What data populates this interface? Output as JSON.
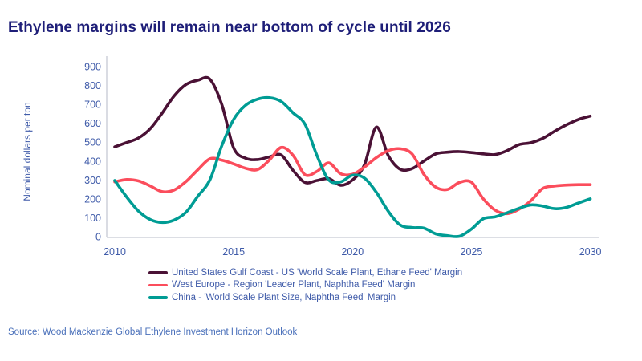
{
  "title": "Ethylene margins will remain near bottom of cycle until 2026",
  "source": "Source: Wood Mackenzie Global Ethylene Investment Horizon Outlook",
  "colors": {
    "title_text": "#1e1e78",
    "axis_text": "#3f5ba9",
    "source_text": "#4a70ba",
    "axis_line": "#c6c9d4",
    "series_us": "#4a1135",
    "series_west_europe": "#fb4d5c",
    "series_china": "#009c94"
  },
  "chart_data": {
    "type": "line",
    "title": "Ethylene margins will remain near bottom of cycle until 2026",
    "xlabel": "",
    "ylabel": "Nominal dollars per ton",
    "xlim": [
      2010,
      2030
    ],
    "ylim": [
      0,
      900
    ],
    "xticks": [
      2010,
      2015,
      2020,
      2025,
      2030
    ],
    "yticks": [
      0,
      100,
      200,
      300,
      400,
      500,
      600,
      700,
      800,
      900
    ],
    "grid": false,
    "legend_position": "bottom",
    "x": [
      2010,
      2010.5,
      2011,
      2011.5,
      2012,
      2012.5,
      2013,
      2013.5,
      2014,
      2014.5,
      2015,
      2015.5,
      2016,
      2016.5,
      2017,
      2017.5,
      2018,
      2018.5,
      2019,
      2019.5,
      2020,
      2020.5,
      2021,
      2021.5,
      2022,
      2022.5,
      2023,
      2023.5,
      2024,
      2024.5,
      2025,
      2025.5,
      2026,
      2026.5,
      2027,
      2027.5,
      2028,
      2028.5,
      2029,
      2029.5,
      2030
    ],
    "series": [
      {
        "name": "United States Gulf Coast - US 'World Scale Plant, Ethane Feed' Margin",
        "color": "#4a1135",
        "values": [
          475,
          498,
          522,
          572,
          655,
          745,
          805,
          828,
          833,
          700,
          470,
          415,
          408,
          422,
          432,
          350,
          287,
          297,
          307,
          272,
          300,
          380,
          580,
          430,
          357,
          360,
          400,
          438,
          447,
          450,
          445,
          438,
          434,
          455,
          487,
          497,
          520,
          558,
          592,
          620,
          638
        ]
      },
      {
        "name": "West Europe - Region 'Leader Plant, Naphtha Feed' Margin",
        "color": "#fb4d5c",
        "values": [
          290,
          302,
          295,
          268,
          238,
          247,
          292,
          355,
          412,
          405,
          385,
          362,
          355,
          405,
          472,
          430,
          328,
          345,
          390,
          333,
          330,
          368,
          418,
          455,
          465,
          438,
          330,
          262,
          250,
          287,
          288,
          200,
          140,
          122,
          145,
          190,
          255,
          268,
          273,
          275,
          275
        ]
      },
      {
        "name": "China - 'World Scale Plant Size, Naphtha Feed' Margin",
        "color": "#009c94",
        "values": [
          297,
          210,
          135,
          90,
          75,
          88,
          130,
          215,
          300,
          480,
          620,
          695,
          727,
          735,
          715,
          655,
          595,
          430,
          300,
          290,
          325,
          310,
          235,
          135,
          62,
          48,
          45,
          15,
          5,
          2,
          40,
          95,
          105,
          126,
          150,
          168,
          162,
          148,
          155,
          178,
          200
        ]
      }
    ]
  }
}
